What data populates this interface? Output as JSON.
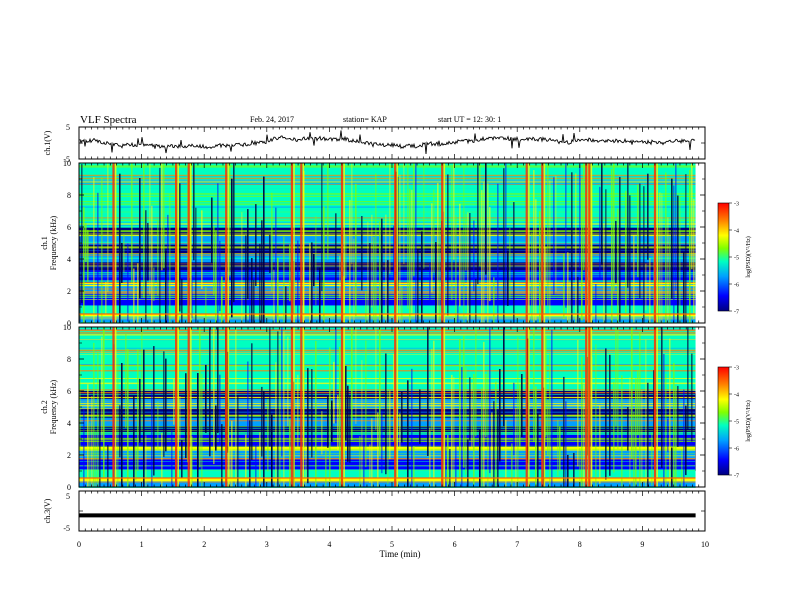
{
  "header": {
    "title": "VLF Spectra",
    "date": "Feb. 24, 2017",
    "station": "station= KAP",
    "start": "start  UT  =   12: 30: 1"
  },
  "chart_data": [
    {
      "type": "line",
      "panel": "ch1-voltage",
      "ylabel": "ch.1(V)",
      "ylim": [
        -5,
        5
      ],
      "yticks": [
        "5",
        "-5"
      ],
      "xlim": [
        0,
        10
      ],
      "series": [
        {
          "values_description_only": false,
          "baseline": 0.4,
          "color": "#000000"
        }
      ]
    },
    {
      "type": "heatmap",
      "panel": "ch1-spectrogram",
      "ylabel_line1": "ch.1",
      "ylabel_line2": "Frequency  (kHz)",
      "ylim": [
        0,
        10
      ],
      "yticks": [
        "0",
        "2",
        "4",
        "6",
        "8",
        "10"
      ],
      "xlim": [
        0,
        10
      ],
      "colorbar": {
        "label": "log(PSD)(V²/Hz)",
        "range": [
          -7,
          -3
        ],
        "ticks": [
          "-3",
          "-4",
          "-5",
          "-6",
          "-7"
        ]
      }
    },
    {
      "type": "heatmap",
      "panel": "ch2-spectrogram",
      "ylabel_line1": "ch.2",
      "ylabel_line2": "Frequency  (kHz)",
      "ylim": [
        0,
        10
      ],
      "yticks": [
        "0",
        "2",
        "4",
        "6",
        "8",
        "10"
      ],
      "xlim": [
        0,
        10
      ],
      "colorbar": {
        "label": "log(PSD)(V²/Hz)",
        "range": [
          -7,
          -3
        ],
        "ticks": [
          "-3",
          "-4",
          "-5",
          "-6",
          "-7"
        ]
      }
    },
    {
      "type": "line",
      "panel": "ch3-voltage",
      "ylabel": "ch.3(V)",
      "ylim": [
        -5,
        5
      ],
      "yticks": [
        "5",
        "-5"
      ],
      "xlim": [
        0,
        10
      ],
      "series": [
        {
          "constant": -1.1,
          "color": "#000000"
        }
      ]
    }
  ],
  "xaxis": {
    "label": "Time  (min)",
    "ticks": [
      "0",
      "1",
      "2",
      "3",
      "4",
      "5",
      "6",
      "7",
      "8",
      "9",
      "10"
    ],
    "data_end": 9.85
  },
  "bursts_min": [
    0.55,
    1.55,
    1.75,
    2.35,
    3.4,
    3.55,
    4.2,
    5.05,
    5.8,
    7.15,
    7.4,
    8.1,
    8.15,
    9.2
  ],
  "colors": {
    "cmap": [
      "#000080",
      "#0000ff",
      "#00a0ff",
      "#00ffc0",
      "#80ff00",
      "#ffff00",
      "#ff8000",
      "#ff0000"
    ]
  }
}
